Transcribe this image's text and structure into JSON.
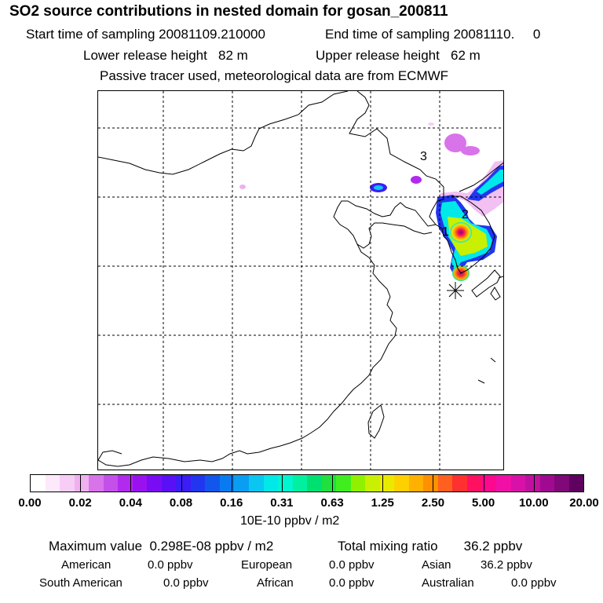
{
  "title": "SO2 source contributions in nested domain for gosan_200811",
  "sampling": {
    "start": "Start time of sampling 20081109.210000",
    "end": "End time of sampling 20081110.     0"
  },
  "release": {
    "lower": "Lower release height   82 m",
    "upper": "Upper release height   62 m"
  },
  "tracer_note": "Passive tracer used, meteorological data are from ECMWF",
  "map": {
    "source_labels": [
      "1",
      "2",
      "3"
    ],
    "receptor_marker": "gosan-station-marker"
  },
  "colorbar": {
    "colors": [
      "#ffffff",
      "#fde9fb",
      "#f7cdf5",
      "#efb0ef",
      "#d873ea",
      "#c450ea",
      "#b12aee",
      "#9a11f0",
      "#7a0cf4",
      "#5a10f6",
      "#3c1df5",
      "#2236f0",
      "#1257ec",
      "#0a7af0",
      "#0a9ef2",
      "#0ac6f0",
      "#00e8e8",
      "#00f5d0",
      "#00f0a0",
      "#00e070",
      "#20e040",
      "#40ee20",
      "#90f000",
      "#c8f000",
      "#eaea00",
      "#ffd000",
      "#ffb000",
      "#ff9000",
      "#ff6020",
      "#ff3030",
      "#ff1060",
      "#ff0890",
      "#f010a8",
      "#d812a8",
      "#c010a0",
      "#a00a90",
      "#800878",
      "#600060"
    ],
    "ticks": [
      "0.00",
      "0.02",
      "0.04",
      "0.08",
      "0.16",
      "0.31",
      "0.63",
      "1.25",
      "2.50",
      "5.00",
      "10.00",
      "20.00"
    ],
    "units": "10E-10 ppbv / m2"
  },
  "stats": {
    "max_label": "Maximum value  0.298E-08 ppbv / m2",
    "total_label": "Total mixing ratio       36.2 ppbv"
  },
  "regions": [
    {
      "name": "American",
      "value": "0.0 ppbv"
    },
    {
      "name": "European",
      "value": "0.0 ppbv"
    },
    {
      "name": "Asian",
      "value": "36.2 ppbv"
    },
    {
      "name": "South American",
      "value": "0.0 ppbv"
    },
    {
      "name": "African",
      "value": "0.0 ppbv"
    },
    {
      "name": "Australian",
      "value": "0.0 ppbv"
    }
  ]
}
